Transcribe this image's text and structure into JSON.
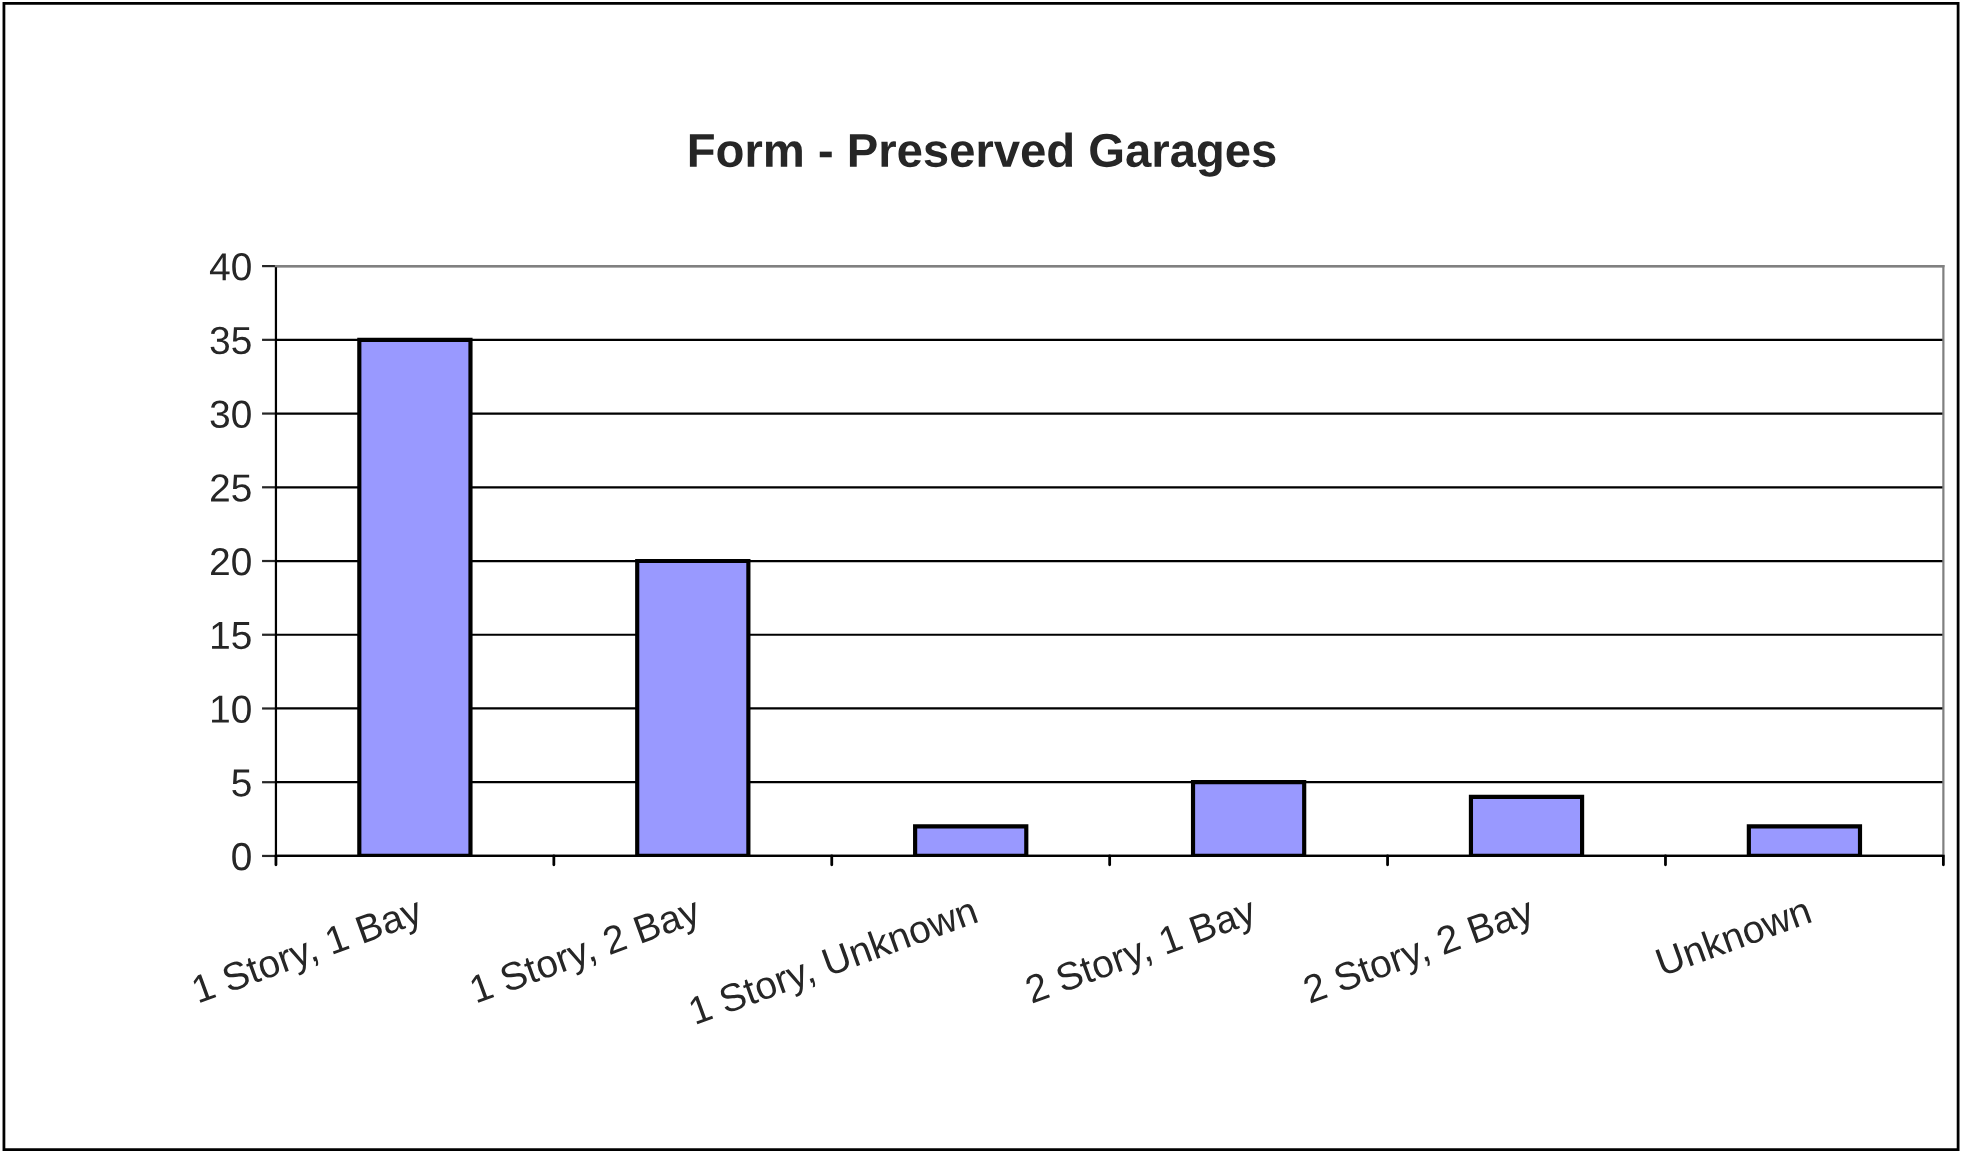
{
  "chart_data": {
    "type": "bar",
    "title": "Form - Preserved Garages",
    "categories": [
      "1 Story, 1 Bay",
      "1 Story, 2 Bay",
      "1 Story, Unknown",
      "2 Story, 1 Bay",
      "2 Story, 2 Bay",
      "Unknown"
    ],
    "values": [
      35,
      20,
      2,
      5,
      4,
      2
    ],
    "color": "#9999ff",
    "ylim": [
      0,
      40
    ],
    "yticks": [
      0,
      5,
      10,
      15,
      20,
      25,
      30,
      35,
      40
    ],
    "grid": "y"
  }
}
